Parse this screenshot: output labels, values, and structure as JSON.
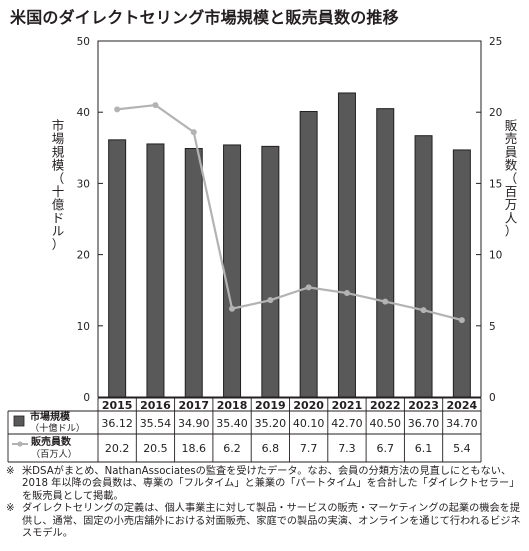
{
  "chart_data": {
    "type": "bar+line",
    "title": "米国のダイレクトセリング市場規模と販売員数の推移",
    "categories": [
      "2015",
      "2016",
      "2017",
      "2018",
      "2019",
      "2020",
      "2021",
      "2022",
      "2023",
      "2024"
    ],
    "series": [
      {
        "name": "市場規模（十億ドル）",
        "type": "bar",
        "axis": "left",
        "color": "#595959",
        "values": [
          36.12,
          35.54,
          34.9,
          35.4,
          35.2,
          40.1,
          42.7,
          40.5,
          36.7,
          34.7
        ],
        "labels": [
          "36.12",
          "35.54",
          "34.90",
          "35.40",
          "35.20",
          "40.10",
          "42.70",
          "40.50",
          "36.70",
          "34.70"
        ]
      },
      {
        "name": "販売員数（百万人）",
        "type": "line",
        "axis": "right",
        "color": "#b3b3b3",
        "values": [
          20.2,
          20.5,
          18.6,
          6.2,
          6.8,
          7.7,
          7.3,
          6.7,
          6.1,
          5.4
        ],
        "labels": [
          "20.2",
          "20.5",
          "18.6",
          "6.2",
          "6.8",
          "7.7",
          "7.3",
          "6.7",
          "6.1",
          "5.4"
        ]
      }
    ],
    "left_axis": {
      "label": "市場規模（十億ドル）",
      "ylim": [
        0,
        50
      ],
      "ticks": [
        0,
        10,
        20,
        30,
        40,
        50
      ]
    },
    "right_axis": {
      "label": "販売員数（百万人）",
      "ylim": [
        0,
        25
      ],
      "ticks": [
        0,
        5,
        10,
        15,
        20,
        25
      ]
    },
    "table": {
      "row1_label": [
        "市場規模",
        "（十億ドル）"
      ],
      "row2_label": [
        "販売員数",
        "（百万人）"
      ]
    },
    "grid": false,
    "legend": "table-below"
  },
  "notes": {
    "mark": "※",
    "items": [
      "米DSAがまとめ、NathanAssociatesの監査を受けたデータ。なお、会員の分類方法の見直しにともない、2018 年以降の会員数は、専業の「フルタイム」と兼業の「パートタイム」を合計した「ダイレクトセラー」を販売員として掲載。",
      "ダイレクトセリングの定義は、個人事業主に対して製品・サービスの販売・マーケティングの起業の機会を提供し、通常、固定の小売店舗外における対面販売、家庭での製品の実演、オンラインを通じて行われるビジネスモデル。"
    ]
  }
}
